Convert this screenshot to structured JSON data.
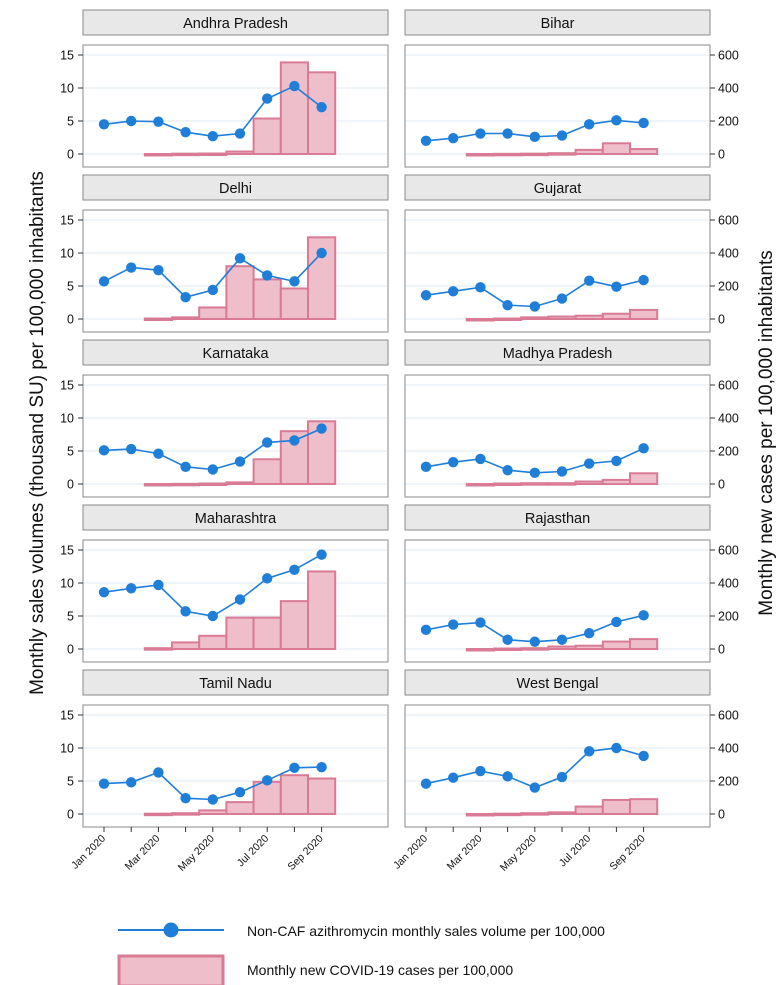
{
  "chart_data": {
    "type": "bar",
    "layout": "small multiples, 5 rows x 2 columns, shared x axis",
    "ylabel_left": "Monthly sales volumes (thousand SU) per 100,000 inhabitants",
    "ylabel_right": "Monthly new cases per 100,000 inhabitants",
    "ylim_left": [
      0,
      15
    ],
    "yticks_left": [
      "0",
      "5",
      "10",
      "15"
    ],
    "ylim_right": [
      0,
      600
    ],
    "yticks_right": [
      "0",
      "200",
      "400",
      "600"
    ],
    "x_months": [
      "Jan 2020",
      "Feb 2020",
      "Mar 2020",
      "Apr 2020",
      "May 2020",
      "Jun 2020",
      "Jul 2020",
      "Aug 2020",
      "Sep 2020"
    ],
    "xtick_labels": [
      "Jan 2020",
      "Mar 2020",
      "May 2020",
      "Jul 2020",
      "Sep 2020"
    ],
    "grid": "horizontal",
    "legend_position": "bottom",
    "legend": {
      "line": "Non-CAF azithromycin monthly sales volume per 100,000",
      "bars": "Monthly new COVID-19 cases per 100,000"
    },
    "colors": {
      "line": "#1e7ed8",
      "bar_fill": "#eebfcb",
      "bar_stroke": "#d97b94",
      "strip": "#e8e8e8",
      "grid": "#dce9f2"
    },
    "panels": [
      {
        "name": "Andhra Pradesh",
        "sales": [
          4.5,
          5.0,
          4.9,
          3.3,
          2.7,
          3.1,
          8.4,
          10.3,
          7.1
        ],
        "cases": [
          null,
          null,
          0,
          2,
          3,
          15,
          215,
          555,
          495
        ]
      },
      {
        "name": "Bihar",
        "sales": [
          2.0,
          2.4,
          3.1,
          3.1,
          2.6,
          2.8,
          4.5,
          5.1,
          4.7
        ],
        "cases": [
          null,
          null,
          0,
          1,
          2,
          5,
          25,
          65,
          30
        ]
      },
      {
        "name": "Delhi",
        "sales": [
          5.7,
          7.8,
          7.4,
          3.3,
          4.4,
          9.2,
          6.6,
          5.7,
          10.0
        ],
        "cases": [
          null,
          null,
          3,
          10,
          70,
          320,
          240,
          185,
          495
        ]
      },
      {
        "name": "Gujarat",
        "sales": [
          3.6,
          4.2,
          4.8,
          2.1,
          1.9,
          3.1,
          5.8,
          4.9,
          5.9
        ],
        "cases": [
          null,
          null,
          0,
          3,
          10,
          15,
          20,
          32,
          55
        ]
      },
      {
        "name": "Karnataka",
        "sales": [
          5.1,
          5.3,
          4.6,
          2.6,
          2.2,
          3.4,
          6.3,
          6.6,
          8.4
        ],
        "cases": [
          null,
          null,
          0,
          1,
          3,
          10,
          150,
          320,
          380
        ]
      },
      {
        "name": "Madhya Pradesh",
        "sales": [
          2.6,
          3.3,
          3.8,
          2.1,
          1.7,
          1.9,
          3.1,
          3.5,
          5.4
        ],
        "cases": [
          null,
          null,
          0,
          3,
          5,
          5,
          15,
          25,
          65
        ]
      },
      {
        "name": "Maharashtra",
        "sales": [
          8.6,
          9.2,
          9.7,
          5.7,
          5.0,
          7.5,
          10.7,
          12.0,
          14.3
        ],
        "cases": [
          null,
          null,
          5,
          40,
          80,
          190,
          190,
          290,
          470
        ]
      },
      {
        "name": "Rajasthan",
        "sales": [
          2.9,
          3.7,
          4.0,
          1.4,
          1.1,
          1.4,
          2.4,
          4.1,
          5.1
        ],
        "cases": [
          null,
          null,
          0,
          3,
          5,
          15,
          20,
          45,
          60
        ]
      },
      {
        "name": "Tamil Nadu",
        "sales": [
          4.6,
          4.8,
          6.3,
          2.4,
          2.2,
          3.3,
          5.1,
          7.0,
          7.1
        ],
        "cases": [
          null,
          null,
          2,
          5,
          22,
          72,
          195,
          235,
          215
        ]
      },
      {
        "name": "West Bengal",
        "sales": [
          4.6,
          5.5,
          6.5,
          5.7,
          4.0,
          5.6,
          9.5,
          10.0,
          8.8
        ],
        "cases": [
          null,
          null,
          0,
          2,
          5,
          10,
          45,
          85,
          90
        ]
      }
    ]
  }
}
